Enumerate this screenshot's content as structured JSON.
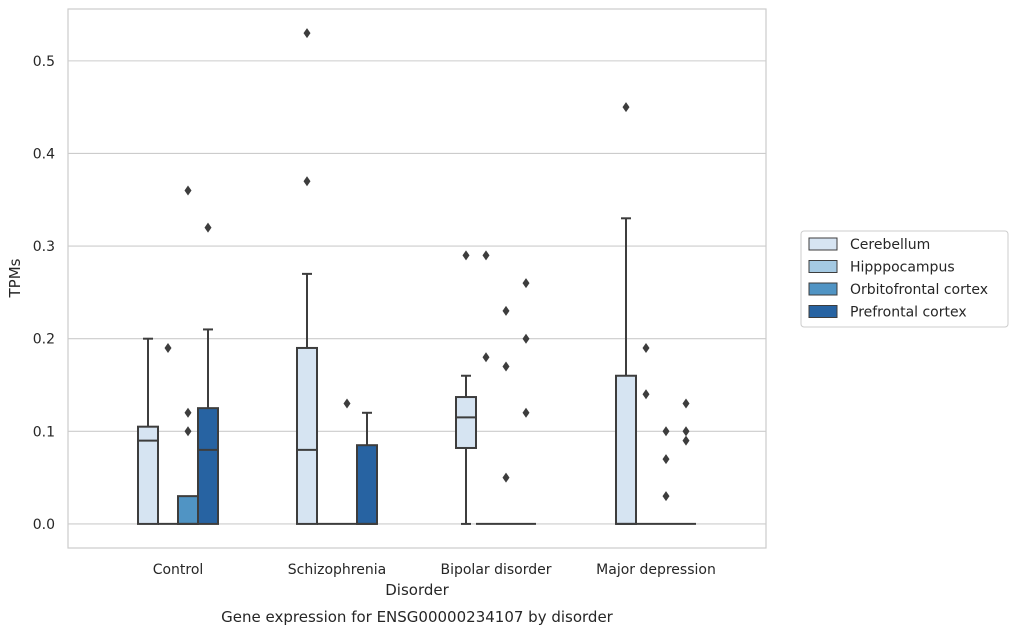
{
  "chart_data": {
    "type": "box",
    "xlabel": "Disorder",
    "ylabel": "TPMs",
    "caption": "Gene expression for ENSG00000234107 by disorder",
    "ylim": [
      -0.026,
      0.556
    ],
    "yticks": [
      "0.0",
      "0.1",
      "0.2",
      "0.3",
      "0.4",
      "0.5"
    ],
    "grid": "horizontal",
    "legend_position": "right",
    "categories": [
      "Control",
      "Schizophrenia",
      "Bipolar disorder",
      "Major depression"
    ],
    "series": [
      {
        "name": "Cerebellum",
        "color": "#d6e4f2"
      },
      {
        "name": "Hipppocampus",
        "color": "#a4c9e2"
      },
      {
        "name": "Orbitofrontal cortex",
        "color": "#5094c4"
      },
      {
        "name": "Prefrontal cortex",
        "color": "#2763a2"
      }
    ],
    "boxes": [
      {
        "category": 0,
        "series": 0,
        "q1": 0,
        "median": 0.09,
        "q3": 0.105,
        "whisker_low": 0,
        "whisker_high": 0.2,
        "outliers": []
      },
      {
        "category": 0,
        "series": 1,
        "q1": 0,
        "median": 0,
        "q3": 0,
        "whisker_low": 0,
        "whisker_high": 0,
        "outliers": [
          0.19
        ]
      },
      {
        "category": 0,
        "series": 2,
        "q1": 0,
        "median": 0,
        "q3": 0.03,
        "whisker_low": 0,
        "whisker_high": 0.03,
        "outliers": [
          0.1,
          0.12,
          0.36
        ]
      },
      {
        "category": 0,
        "series": 3,
        "q1": 0,
        "median": 0.08,
        "q3": 0.125,
        "whisker_low": 0,
        "whisker_high": 0.21,
        "outliers": [
          0.32
        ]
      },
      {
        "category": 1,
        "series": 0,
        "q1": 0,
        "median": 0.08,
        "q3": 0.19,
        "whisker_low": 0,
        "whisker_high": 0.27,
        "outliers": [
          0.37,
          0.53
        ]
      },
      {
        "category": 1,
        "series": 1,
        "q1": 0,
        "median": 0,
        "q3": 0,
        "whisker_low": 0,
        "whisker_high": 0,
        "outliers": []
      },
      {
        "category": 1,
        "series": 2,
        "q1": 0,
        "median": 0,
        "q3": 0,
        "whisker_low": 0,
        "whisker_high": 0,
        "outliers": [
          0.13
        ]
      },
      {
        "category": 1,
        "series": 3,
        "q1": 0,
        "median": 0,
        "q3": 0.085,
        "whisker_low": 0,
        "whisker_high": 0.12,
        "outliers": []
      },
      {
        "category": 2,
        "series": 0,
        "q1": 0.082,
        "median": 0.115,
        "q3": 0.137,
        "whisker_low": 0,
        "whisker_high": 0.16,
        "outliers": [
          0.29
        ]
      },
      {
        "category": 2,
        "series": 1,
        "q1": 0,
        "median": 0,
        "q3": 0,
        "whisker_low": 0,
        "whisker_high": 0,
        "outliers": [
          0.18,
          0.29
        ]
      },
      {
        "category": 2,
        "series": 2,
        "q1": 0,
        "median": 0,
        "q3": 0,
        "whisker_low": 0,
        "whisker_high": 0,
        "outliers": [
          0.05,
          0.17,
          0.23
        ]
      },
      {
        "category": 2,
        "series": 3,
        "q1": 0,
        "median": 0,
        "q3": 0,
        "whisker_low": 0,
        "whisker_high": 0,
        "outliers": [
          0.12,
          0.2,
          0.26
        ]
      },
      {
        "category": 3,
        "series": 0,
        "q1": 0,
        "median": 0,
        "q3": 0.16,
        "whisker_low": 0,
        "whisker_high": 0.33,
        "outliers": [
          0.45
        ]
      },
      {
        "category": 3,
        "series": 1,
        "q1": 0,
        "median": 0,
        "q3": 0,
        "whisker_low": 0,
        "whisker_high": 0,
        "outliers": [
          0.14,
          0.19
        ]
      },
      {
        "category": 3,
        "series": 2,
        "q1": 0,
        "median": 0,
        "q3": 0,
        "whisker_low": 0,
        "whisker_high": 0,
        "outliers": [
          0.03,
          0.07,
          0.1
        ]
      },
      {
        "category": 3,
        "series": 3,
        "q1": 0,
        "median": 0,
        "q3": 0,
        "whisker_low": 0,
        "whisker_high": 0,
        "outliers": [
          0.09,
          0.1,
          0.13
        ]
      }
    ]
  }
}
